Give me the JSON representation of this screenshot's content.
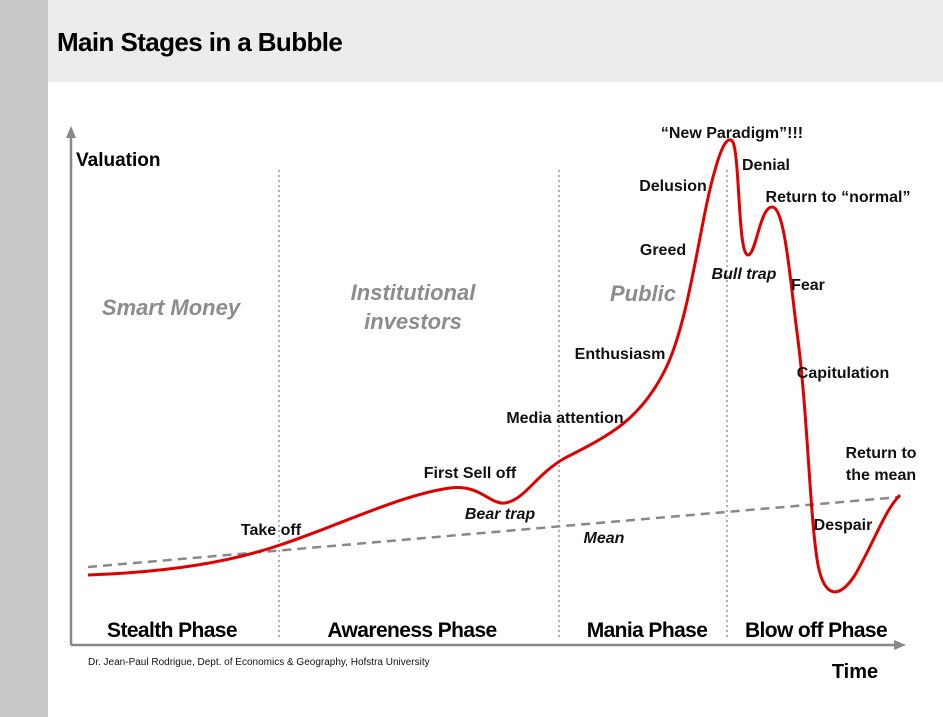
{
  "header": {
    "title": "Main Stages in a Bubble"
  },
  "axes": {
    "y_label": "Valuation",
    "x_label": "Time"
  },
  "investor_groups": [
    [
      "Smart Money"
    ],
    [
      "Institutional",
      "investors"
    ],
    [
      "Public"
    ]
  ],
  "phases": [
    "Stealth Phase",
    "Awareness Phase",
    "Mania Phase",
    "Blow off Phase"
  ],
  "annotations": {
    "take_off": "Take off",
    "first_sell_off": "First Sell off",
    "bear_trap": "Bear trap",
    "media_attention": "Media attention",
    "mean": "Mean",
    "enthusiasm": "Enthusiasm",
    "greed": "Greed",
    "delusion": "Delusion",
    "new_paradigm": "“New Paradigm”!!!",
    "denial": "Denial",
    "return_to_normal": "Return to “normal”",
    "bull_trap": "Bull trap",
    "fear": "Fear",
    "capitulation": "Capitulation",
    "return_to_the_mean": [
      "Return to",
      "the mean"
    ],
    "despair": "Despair"
  },
  "credit": "Dr. Jean-Paul Rodrigue, Dept. of Economics & Geography, Hofstra University"
}
